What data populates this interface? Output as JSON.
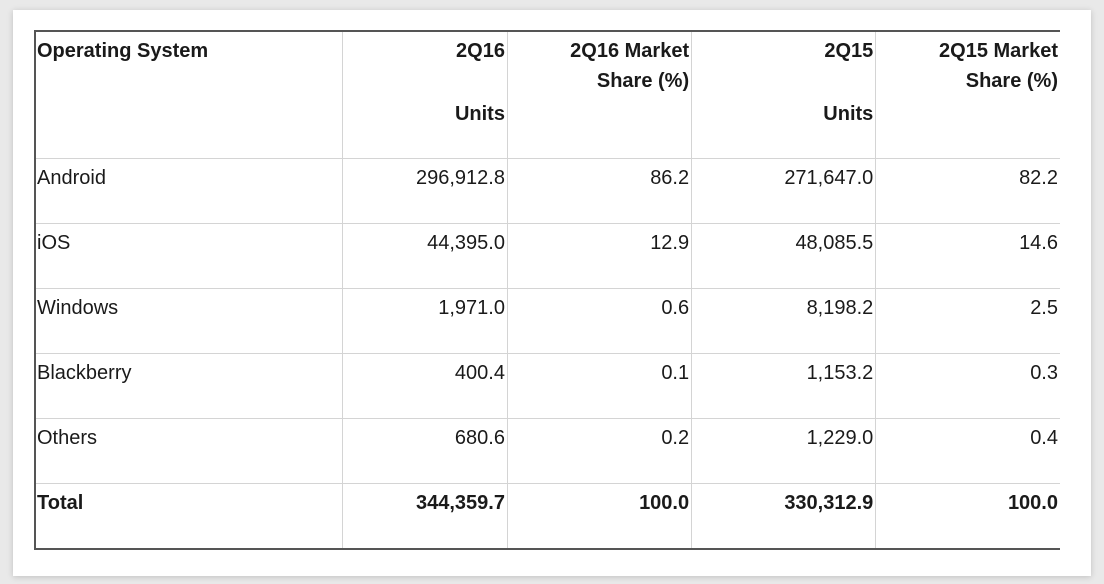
{
  "table": {
    "headers": {
      "os": "Operating System",
      "units_2q16": [
        "2Q16",
        "Units"
      ],
      "share_2q16": [
        "2Q16 Market",
        "Share (%)"
      ],
      "units_2q15": [
        "2Q15",
        "Units"
      ],
      "share_2q15": [
        "2Q15 Market",
        "Share (%)"
      ]
    },
    "rows": [
      {
        "os": "Android",
        "units_2q16": "296,912.8",
        "share_2q16": "86.2",
        "units_2q15": "271,647.0",
        "share_2q15": "82.2"
      },
      {
        "os": "iOS",
        "units_2q16": "44,395.0",
        "share_2q16": "12.9",
        "units_2q15": "48,085.5",
        "share_2q15": "14.6"
      },
      {
        "os": "Windows",
        "units_2q16": "1,971.0",
        "share_2q16": "0.6",
        "units_2q15": "8,198.2",
        "share_2q15": "2.5"
      },
      {
        "os": "Blackberry",
        "units_2q16": "400.4",
        "share_2q16": "0.1",
        "units_2q15": "1,153.2",
        "share_2q15": "0.3"
      },
      {
        "os": "Others",
        "units_2q16": "680.6",
        "share_2q16": "0.2",
        "units_2q15": "1,229.0",
        "share_2q15": "0.4"
      }
    ],
    "total": {
      "os": "Total",
      "units_2q16": "344,359.7",
      "share_2q16": "100.0",
      "units_2q15": "330,312.9",
      "share_2q15": "100.0"
    }
  }
}
